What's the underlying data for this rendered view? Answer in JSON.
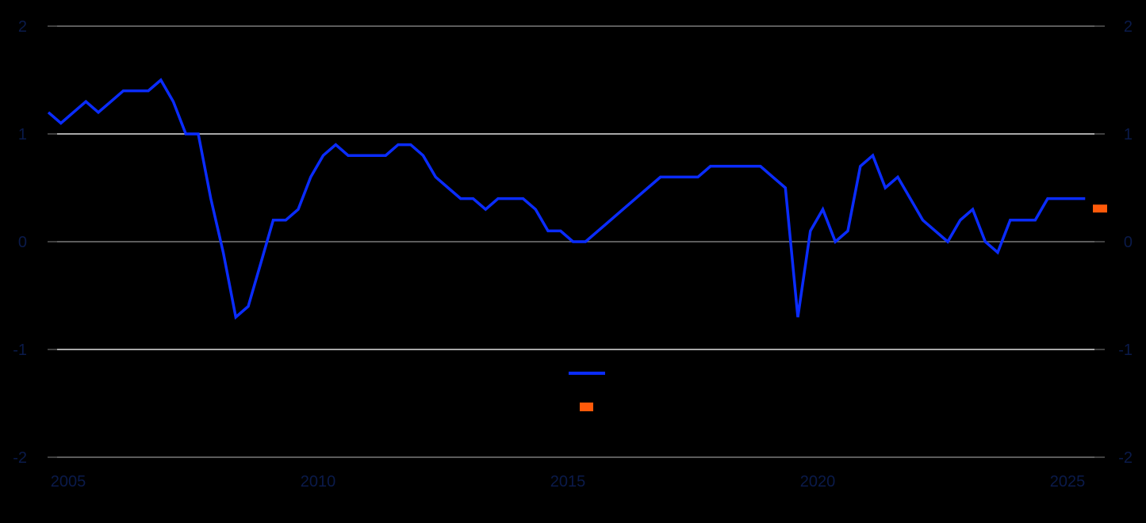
{
  "chart_data": {
    "type": "line",
    "title": "",
    "xlabel": "",
    "ylabel": "",
    "ylim": [
      -2,
      2
    ],
    "y_ticks": [
      2,
      1,
      0,
      -1,
      -2
    ],
    "y_tick_labels": [
      "2",
      "1",
      "0",
      "-1",
      "-2"
    ],
    "y_right_tick_labels": [
      "2",
      "1",
      "0",
      "-1",
      "-2"
    ],
    "x_ticks": [
      "2005",
      "2010",
      "2015",
      "2020",
      "2025"
    ],
    "x_frequency": "quarterly",
    "x_start": "2005Q1",
    "grid": true,
    "legend_position": "center-bottom (inside plot)",
    "legend": [
      {
        "name": "",
        "type": "line",
        "color": "#0a2cff"
      },
      {
        "name": "",
        "type": "marker",
        "color": "#ff5a0a"
      }
    ],
    "series": [
      {
        "name": "",
        "color": "#0a2cff",
        "type": "line",
        "values": [
          1.2,
          1.1,
          1.2,
          1.3,
          1.2,
          1.3,
          1.4,
          1.4,
          1.4,
          1.5,
          1.3,
          1.0,
          1.0,
          0.4,
          -0.1,
          -0.7,
          -0.6,
          -0.2,
          0.2,
          0.2,
          0.3,
          0.6,
          0.8,
          0.9,
          0.8,
          0.8,
          0.8,
          0.8,
          0.9,
          0.9,
          0.8,
          0.6,
          0.5,
          0.4,
          0.4,
          0.3,
          0.4,
          0.4,
          0.4,
          0.3,
          0.1,
          0.1,
          0.0,
          0.0,
          0.1,
          0.2,
          0.3,
          0.4,
          0.5,
          0.6,
          0.6,
          0.6,
          0.6,
          0.7,
          0.7,
          0.7,
          0.7,
          0.7,
          0.6,
          0.5,
          -0.7,
          0.1,
          0.3,
          0.0,
          0.1,
          0.7,
          0.8,
          0.5,
          0.6,
          0.4,
          0.2,
          0.1,
          0.0,
          0.2,
          0.3,
          0.0,
          -0.1,
          0.2,
          0.2,
          0.2,
          0.4,
          0.4,
          0.4,
          0.4
        ]
      },
      {
        "name": "",
        "color": "#ff5a0a",
        "type": "marker",
        "x_index": 84,
        "values": [
          0.3
        ]
      }
    ]
  }
}
